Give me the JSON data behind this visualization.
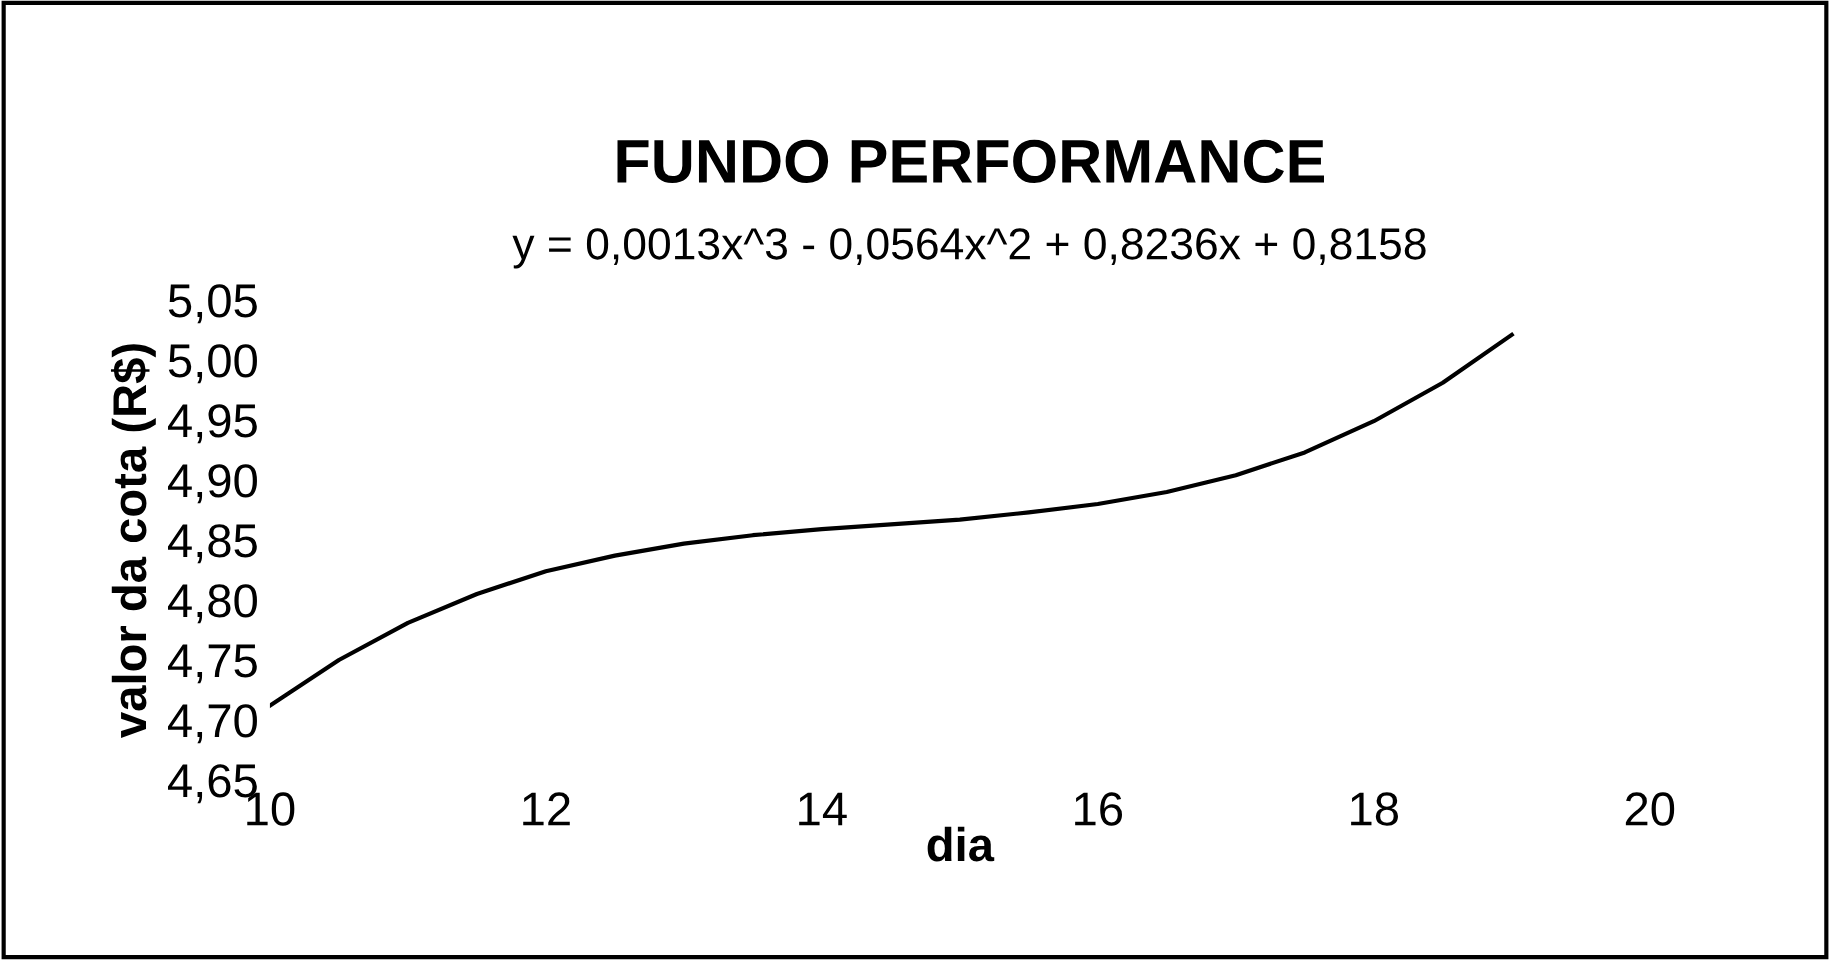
{
  "chart_data": {
    "type": "line",
    "title": "FUNDO PERFORMANCE",
    "subtitle": "y = 0,0013x^3 - 0,0564x^2 + 0,8236x + 0,8158",
    "xlabel": "dia",
    "ylabel": "valor da cota (R$)",
    "x": [
      10,
      10.5,
      11,
      11.5,
      12,
      12.5,
      13,
      13.5,
      14,
      14.5,
      15,
      15.5,
      16,
      16.5,
      17,
      17.5,
      18,
      18.5,
      19
    ],
    "series": [
      {
        "color": "#000000",
        "values": [
          4.712,
          4.75,
          4.781,
          4.805,
          4.824,
          4.837,
          4.847,
          4.854,
          4.859,
          4.863,
          4.867,
          4.873,
          4.88,
          4.89,
          4.904,
          4.923,
          4.949,
          4.981,
          5.021
        ]
      }
    ],
    "xlim": [
      10,
      20
    ],
    "xticks": [
      10,
      12,
      14,
      16,
      18,
      20
    ],
    "ylim": [
      4.65,
      5.05
    ],
    "yticks": [
      {
        "value": 4.65,
        "label": "4,65"
      },
      {
        "value": 4.7,
        "label": "4,70"
      },
      {
        "value": 4.75,
        "label": "4,75"
      },
      {
        "value": 4.8,
        "label": "4,80"
      },
      {
        "value": 4.85,
        "label": "4,85"
      },
      {
        "value": 4.9,
        "label": "4,90"
      },
      {
        "value": 4.95,
        "label": "4,95"
      },
      {
        "value": 5.0,
        "label": "5,00"
      },
      {
        "value": 5.05,
        "label": "5,05"
      }
    ],
    "grid": false,
    "legend": false,
    "marker": "none",
    "line_style": "solid"
  }
}
